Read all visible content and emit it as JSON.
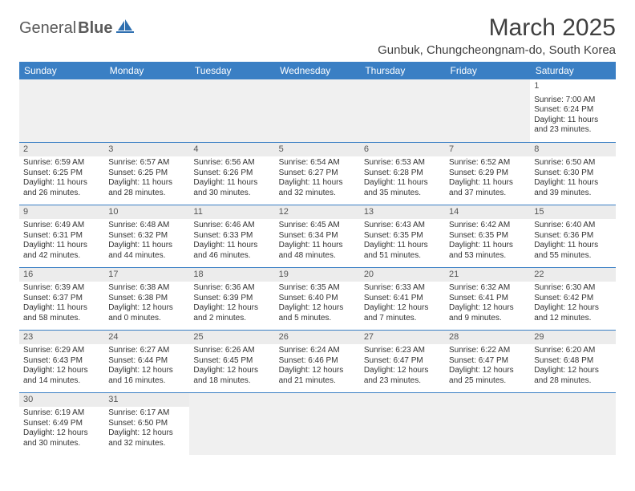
{
  "logo": {
    "part1": "General",
    "part2": "Blue"
  },
  "title": "March 2025",
  "location": "Gunbuk, Chungcheongnam-do, South Korea",
  "colors": {
    "header_bg": "#3a7fc4",
    "header_text": "#ffffff",
    "day_bar_bg": "#ececec",
    "border": "#3a7fc4",
    "logo_sail": "#2e6fb0"
  },
  "weekdays": [
    "Sunday",
    "Monday",
    "Tuesday",
    "Wednesday",
    "Thursday",
    "Friday",
    "Saturday"
  ],
  "weeks": [
    [
      null,
      null,
      null,
      null,
      null,
      null,
      {
        "n": "1",
        "sr": "Sunrise: 7:00 AM",
        "ss": "Sunset: 6:24 PM",
        "dl1": "Daylight: 11 hours",
        "dl2": "and 23 minutes."
      }
    ],
    [
      {
        "n": "2",
        "sr": "Sunrise: 6:59 AM",
        "ss": "Sunset: 6:25 PM",
        "dl1": "Daylight: 11 hours",
        "dl2": "and 26 minutes."
      },
      {
        "n": "3",
        "sr": "Sunrise: 6:57 AM",
        "ss": "Sunset: 6:25 PM",
        "dl1": "Daylight: 11 hours",
        "dl2": "and 28 minutes."
      },
      {
        "n": "4",
        "sr": "Sunrise: 6:56 AM",
        "ss": "Sunset: 6:26 PM",
        "dl1": "Daylight: 11 hours",
        "dl2": "and 30 minutes."
      },
      {
        "n": "5",
        "sr": "Sunrise: 6:54 AM",
        "ss": "Sunset: 6:27 PM",
        "dl1": "Daylight: 11 hours",
        "dl2": "and 32 minutes."
      },
      {
        "n": "6",
        "sr": "Sunrise: 6:53 AM",
        "ss": "Sunset: 6:28 PM",
        "dl1": "Daylight: 11 hours",
        "dl2": "and 35 minutes."
      },
      {
        "n": "7",
        "sr": "Sunrise: 6:52 AM",
        "ss": "Sunset: 6:29 PM",
        "dl1": "Daylight: 11 hours",
        "dl2": "and 37 minutes."
      },
      {
        "n": "8",
        "sr": "Sunrise: 6:50 AM",
        "ss": "Sunset: 6:30 PM",
        "dl1": "Daylight: 11 hours",
        "dl2": "and 39 minutes."
      }
    ],
    [
      {
        "n": "9",
        "sr": "Sunrise: 6:49 AM",
        "ss": "Sunset: 6:31 PM",
        "dl1": "Daylight: 11 hours",
        "dl2": "and 42 minutes."
      },
      {
        "n": "10",
        "sr": "Sunrise: 6:48 AM",
        "ss": "Sunset: 6:32 PM",
        "dl1": "Daylight: 11 hours",
        "dl2": "and 44 minutes."
      },
      {
        "n": "11",
        "sr": "Sunrise: 6:46 AM",
        "ss": "Sunset: 6:33 PM",
        "dl1": "Daylight: 11 hours",
        "dl2": "and 46 minutes."
      },
      {
        "n": "12",
        "sr": "Sunrise: 6:45 AM",
        "ss": "Sunset: 6:34 PM",
        "dl1": "Daylight: 11 hours",
        "dl2": "and 48 minutes."
      },
      {
        "n": "13",
        "sr": "Sunrise: 6:43 AM",
        "ss": "Sunset: 6:35 PM",
        "dl1": "Daylight: 11 hours",
        "dl2": "and 51 minutes."
      },
      {
        "n": "14",
        "sr": "Sunrise: 6:42 AM",
        "ss": "Sunset: 6:35 PM",
        "dl1": "Daylight: 11 hours",
        "dl2": "and 53 minutes."
      },
      {
        "n": "15",
        "sr": "Sunrise: 6:40 AM",
        "ss": "Sunset: 6:36 PM",
        "dl1": "Daylight: 11 hours",
        "dl2": "and 55 minutes."
      }
    ],
    [
      {
        "n": "16",
        "sr": "Sunrise: 6:39 AM",
        "ss": "Sunset: 6:37 PM",
        "dl1": "Daylight: 11 hours",
        "dl2": "and 58 minutes."
      },
      {
        "n": "17",
        "sr": "Sunrise: 6:38 AM",
        "ss": "Sunset: 6:38 PM",
        "dl1": "Daylight: 12 hours",
        "dl2": "and 0 minutes."
      },
      {
        "n": "18",
        "sr": "Sunrise: 6:36 AM",
        "ss": "Sunset: 6:39 PM",
        "dl1": "Daylight: 12 hours",
        "dl2": "and 2 minutes."
      },
      {
        "n": "19",
        "sr": "Sunrise: 6:35 AM",
        "ss": "Sunset: 6:40 PM",
        "dl1": "Daylight: 12 hours",
        "dl2": "and 5 minutes."
      },
      {
        "n": "20",
        "sr": "Sunrise: 6:33 AM",
        "ss": "Sunset: 6:41 PM",
        "dl1": "Daylight: 12 hours",
        "dl2": "and 7 minutes."
      },
      {
        "n": "21",
        "sr": "Sunrise: 6:32 AM",
        "ss": "Sunset: 6:41 PM",
        "dl1": "Daylight: 12 hours",
        "dl2": "and 9 minutes."
      },
      {
        "n": "22",
        "sr": "Sunrise: 6:30 AM",
        "ss": "Sunset: 6:42 PM",
        "dl1": "Daylight: 12 hours",
        "dl2": "and 12 minutes."
      }
    ],
    [
      {
        "n": "23",
        "sr": "Sunrise: 6:29 AM",
        "ss": "Sunset: 6:43 PM",
        "dl1": "Daylight: 12 hours",
        "dl2": "and 14 minutes."
      },
      {
        "n": "24",
        "sr": "Sunrise: 6:27 AM",
        "ss": "Sunset: 6:44 PM",
        "dl1": "Daylight: 12 hours",
        "dl2": "and 16 minutes."
      },
      {
        "n": "25",
        "sr": "Sunrise: 6:26 AM",
        "ss": "Sunset: 6:45 PM",
        "dl1": "Daylight: 12 hours",
        "dl2": "and 18 minutes."
      },
      {
        "n": "26",
        "sr": "Sunrise: 6:24 AM",
        "ss": "Sunset: 6:46 PM",
        "dl1": "Daylight: 12 hours",
        "dl2": "and 21 minutes."
      },
      {
        "n": "27",
        "sr": "Sunrise: 6:23 AM",
        "ss": "Sunset: 6:47 PM",
        "dl1": "Daylight: 12 hours",
        "dl2": "and 23 minutes."
      },
      {
        "n": "28",
        "sr": "Sunrise: 6:22 AM",
        "ss": "Sunset: 6:47 PM",
        "dl1": "Daylight: 12 hours",
        "dl2": "and 25 minutes."
      },
      {
        "n": "29",
        "sr": "Sunrise: 6:20 AM",
        "ss": "Sunset: 6:48 PM",
        "dl1": "Daylight: 12 hours",
        "dl2": "and 28 minutes."
      }
    ],
    [
      {
        "n": "30",
        "sr": "Sunrise: 6:19 AM",
        "ss": "Sunset: 6:49 PM",
        "dl1": "Daylight: 12 hours",
        "dl2": "and 30 minutes."
      },
      {
        "n": "31",
        "sr": "Sunrise: 6:17 AM",
        "ss": "Sunset: 6:50 PM",
        "dl1": "Daylight: 12 hours",
        "dl2": "and 32 minutes."
      },
      null,
      null,
      null,
      null,
      null
    ]
  ]
}
